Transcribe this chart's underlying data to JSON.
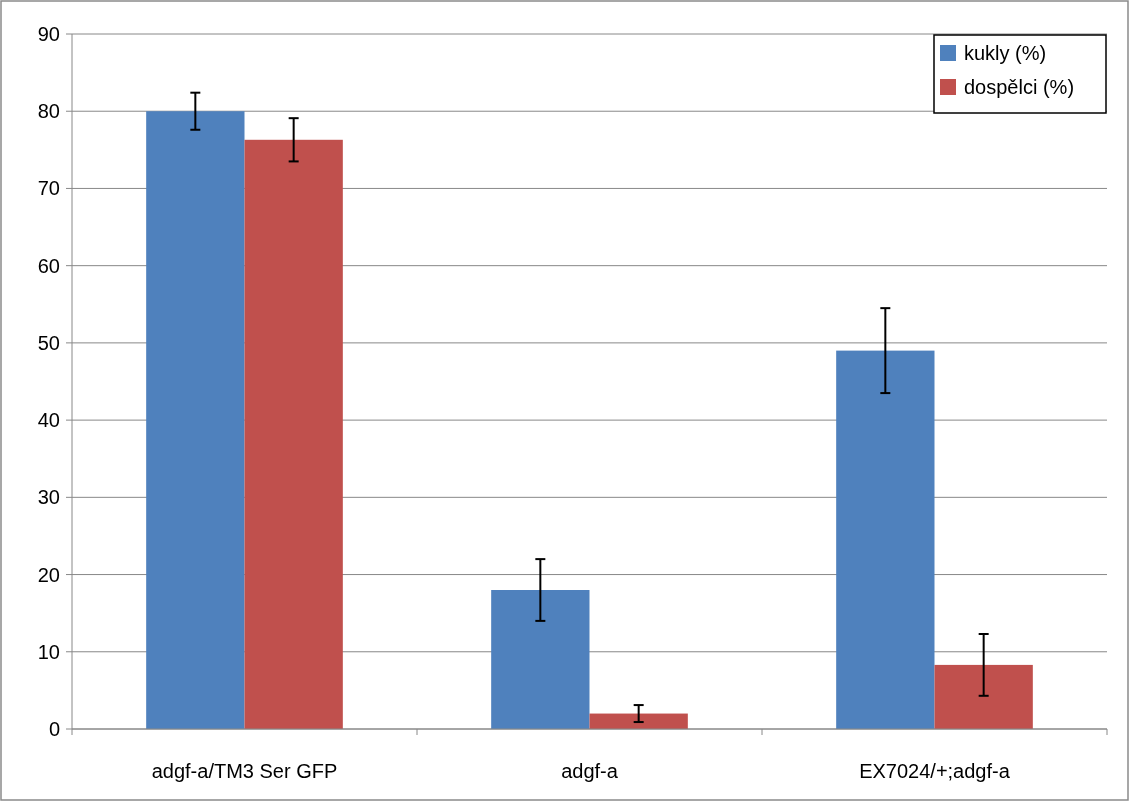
{
  "chart_data": {
    "type": "bar",
    "categories": [
      "adgf-a/TM3 Ser GFP",
      "adgf-a",
      "EX7024/+;adgf-a"
    ],
    "series": [
      {
        "name": "kukly (%)",
        "color": "#4f81bd",
        "values": [
          80,
          18,
          49
        ],
        "errors": [
          2.4,
          4,
          5.5
        ]
      },
      {
        "name": "dospělci (%)",
        "color": "#c0504d",
        "values": [
          76.3,
          2,
          8.3
        ],
        "errors": [
          2.8,
          1.1,
          4
        ]
      }
    ],
    "ylim": [
      0,
      90
    ],
    "yticks": [
      0,
      10,
      20,
      30,
      40,
      50,
      60,
      70,
      80,
      90
    ],
    "grid": "y",
    "legend": "top right"
  }
}
